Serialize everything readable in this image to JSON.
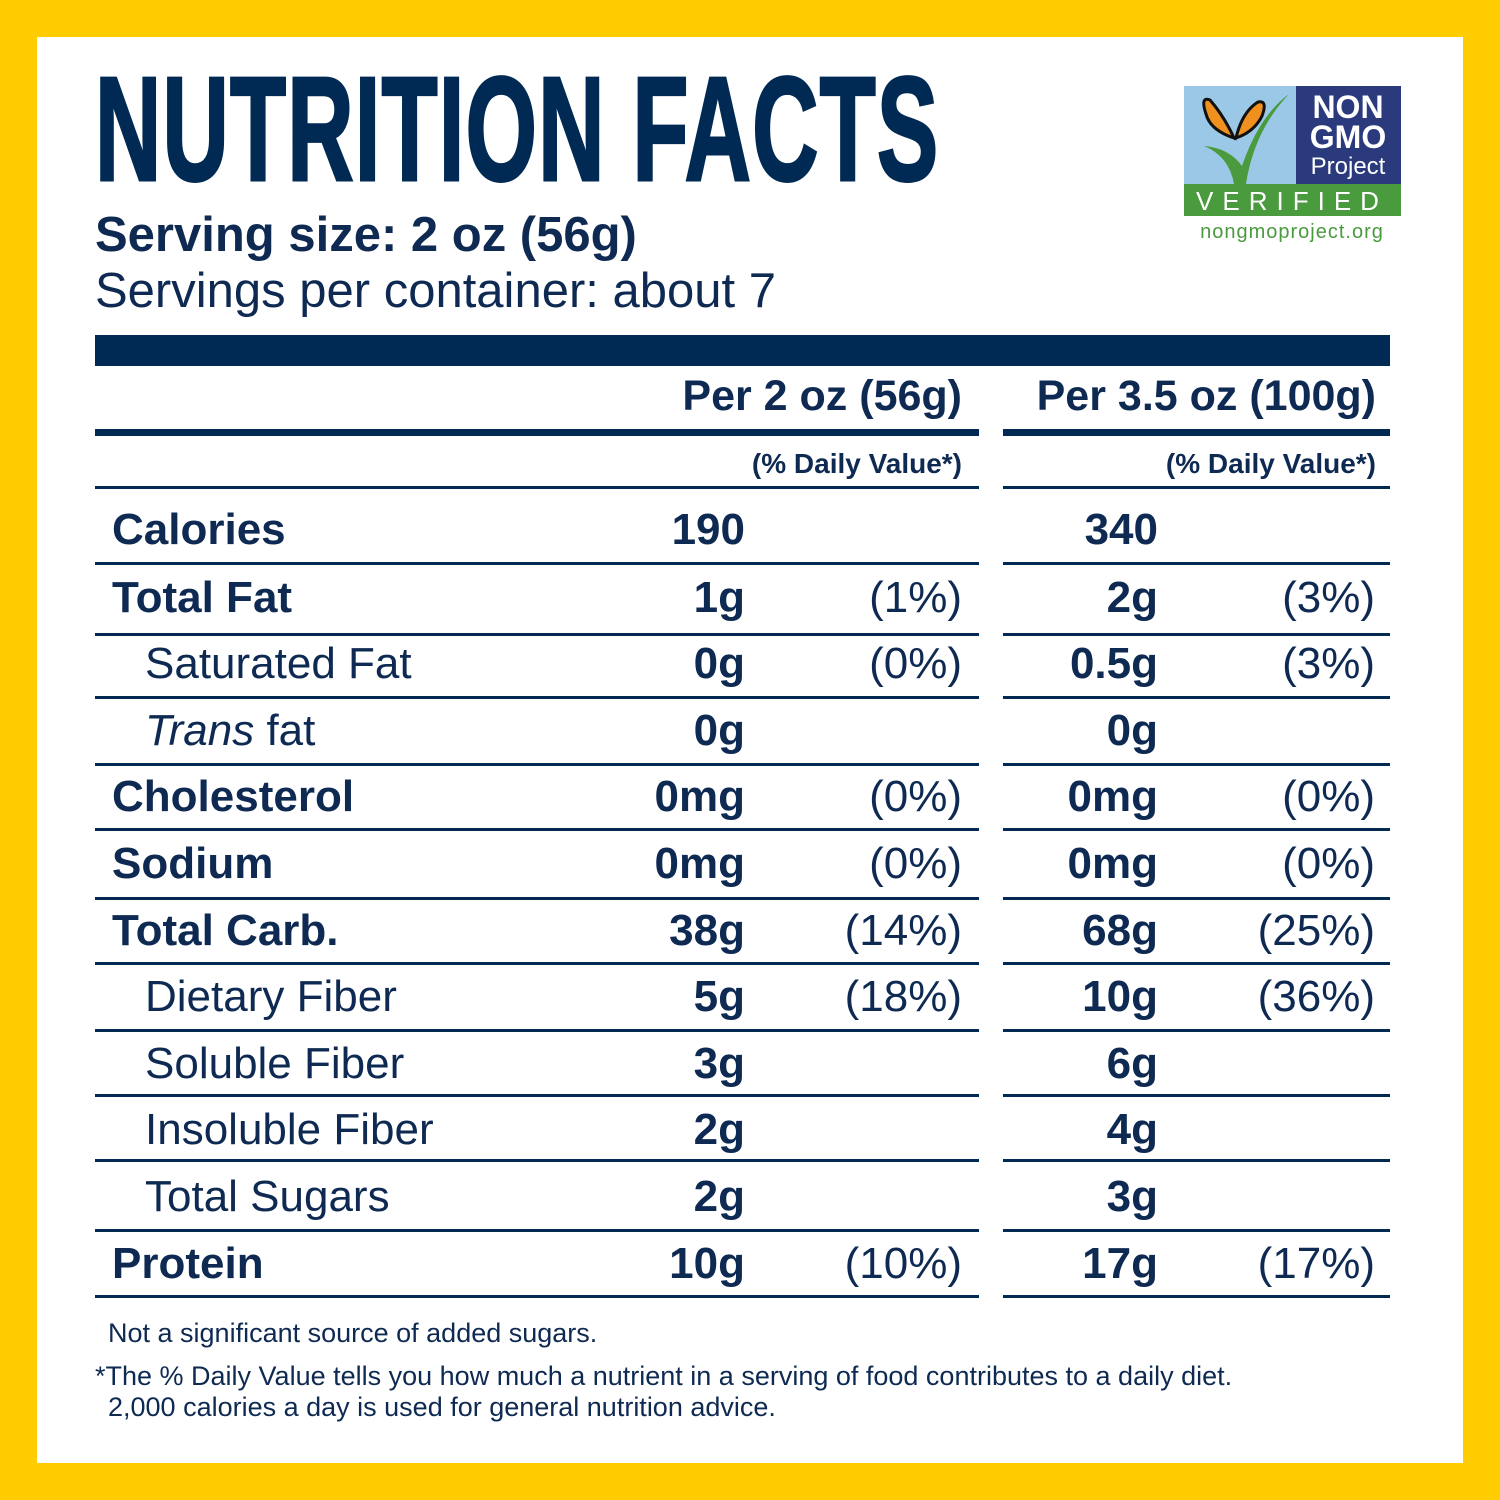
{
  "title": "NUTRITION FACTS",
  "serving_size": "Serving size: 2 oz (56g)",
  "servings_per_container": "Servings per container: about 7",
  "logo": {
    "line1": "NON",
    "line2": "GMO",
    "line3": "Project",
    "verified": "VERIFIED",
    "url": "nongmoproject.org",
    "colors": {
      "sky": "#9cc8e8",
      "navy": "#2a3a7c",
      "green": "#4a9a3e",
      "orange": "#f0901e"
    }
  },
  "columns": [
    {
      "header": "Per 2 oz (56g)",
      "dv_header": "(% Daily Value*)"
    },
    {
      "header": "Per 3.5 oz (100g)",
      "dv_header": "(% Daily Value*)"
    }
  ],
  "rows": [
    {
      "label": "Calories",
      "bold": true,
      "indent": false,
      "v1": "190",
      "dv1": "",
      "v2": "340",
      "dv2": ""
    },
    {
      "label": "Total Fat",
      "bold": true,
      "indent": false,
      "v1": "1g",
      "dv1": "(1%)",
      "v2": "2g",
      "dv2": "(3%)"
    },
    {
      "label": "Saturated Fat",
      "bold": false,
      "indent": true,
      "v1": "0g",
      "dv1": "(0%)",
      "v2": "0.5g",
      "dv2": "(3%)"
    },
    {
      "label": "Trans",
      "label_suffix": " fat",
      "italic": true,
      "bold": false,
      "indent": true,
      "v1": "0g",
      "dv1": "",
      "v2": "0g",
      "dv2": ""
    },
    {
      "label": "Cholesterol",
      "bold": true,
      "indent": false,
      "v1": "0mg",
      "dv1": "(0%)",
      "v2": "0mg",
      "dv2": "(0%)"
    },
    {
      "label": "Sodium",
      "bold": true,
      "indent": false,
      "v1": "0mg",
      "dv1": "(0%)",
      "v2": "0mg",
      "dv2": "(0%)"
    },
    {
      "label": "Total Carb.",
      "bold": true,
      "indent": false,
      "v1": "38g",
      "dv1": "(14%)",
      "v2": "68g",
      "dv2": "(25%)"
    },
    {
      "label": "Dietary Fiber",
      "bold": false,
      "indent": true,
      "v1": "5g",
      "dv1": "(18%)",
      "v2": "10g",
      "dv2": "(36%)"
    },
    {
      "label": "Soluble Fiber",
      "bold": false,
      "indent": true,
      "v1": "3g",
      "dv1": "",
      "v2": "6g",
      "dv2": ""
    },
    {
      "label": "Insoluble Fiber",
      "bold": false,
      "indent": true,
      "v1": "2g",
      "dv1": "",
      "v2": "4g",
      "dv2": ""
    },
    {
      "label": "Total Sugars",
      "bold": false,
      "indent": true,
      "v1": "2g",
      "dv1": "",
      "v2": "3g",
      "dv2": ""
    },
    {
      "label": "Protein",
      "bold": true,
      "indent": false,
      "v1": "10g",
      "dv1": "(10%)",
      "v2": "17g",
      "dv2": "(17%)"
    }
  ],
  "footnotes": {
    "added_sugars": "Not a significant source of added sugars.",
    "dv_line1": "*The % Daily Value tells you how much a nutrient in a serving of food contributes to a daily diet.",
    "dv_line2": "2,000 calories a day is used for general nutrition advice."
  },
  "colors": {
    "border": "#ffcc00",
    "text": "#0e2a52",
    "rule": "#002a54"
  }
}
